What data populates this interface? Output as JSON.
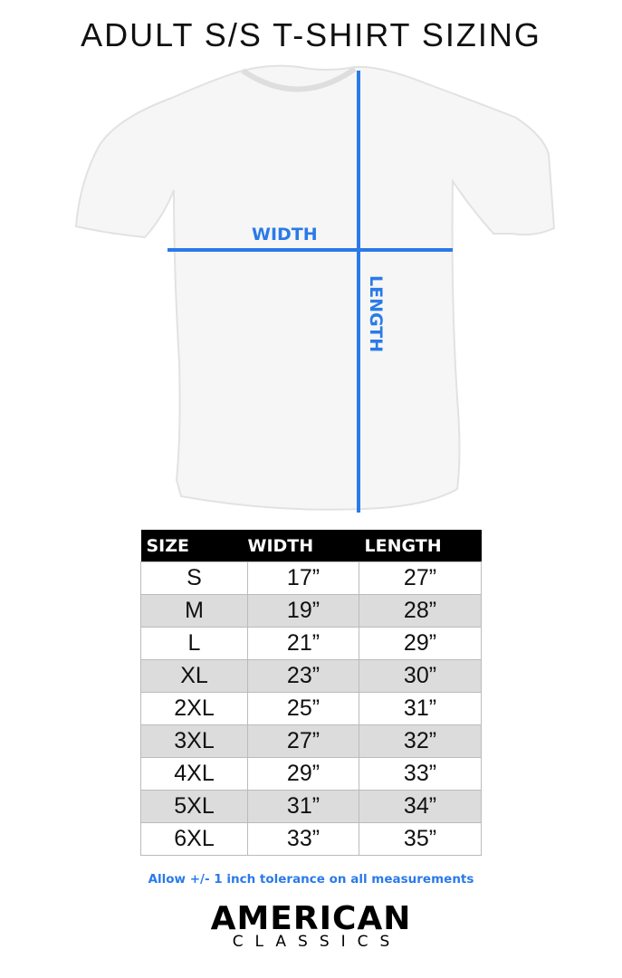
{
  "title": "ADULT S/S T-SHIRT SIZING",
  "diagram": {
    "width_label": "WIDTH",
    "length_label": "LENGTH",
    "measure_color": "#2a7ae8"
  },
  "table": {
    "headers": [
      "SIZE",
      "WIDTH",
      "LENGTH"
    ],
    "rows": [
      [
        "S",
        "17”",
        "27”"
      ],
      [
        "M",
        "19”",
        "28”"
      ],
      [
        "L",
        "21”",
        "29”"
      ],
      [
        "XL",
        "23”",
        "30”"
      ],
      [
        "2XL",
        "25”",
        "31”"
      ],
      [
        "3XL",
        "27”",
        "32”"
      ],
      [
        "4XL",
        "29”",
        "33”"
      ],
      [
        "5XL",
        "31”",
        "34”"
      ],
      [
        "6XL",
        "33”",
        "35”"
      ]
    ]
  },
  "note": "Allow +/- 1 inch tolerance on all measurements",
  "logo": {
    "line1": "AMERICAN",
    "line2": "CLASSICS"
  }
}
